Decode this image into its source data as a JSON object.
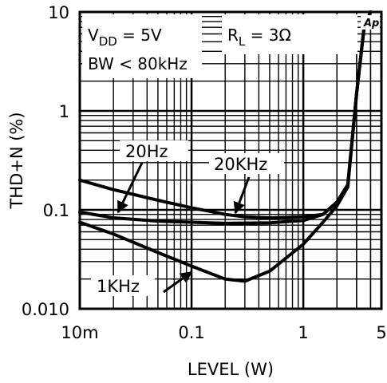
{
  "chart_data": {
    "type": "line",
    "title": "",
    "xlabel": "LEVEL (W)",
    "ylabel": "THD+N (%)",
    "xscale": "log",
    "yscale": "log",
    "xlim": [
      0.01,
      5
    ],
    "ylim": [
      0.01,
      10
    ],
    "grid": true,
    "x_ticks": [
      {
        "value": 0.01,
        "label": "10m"
      },
      {
        "value": 0.1,
        "label": "0.1"
      },
      {
        "value": 1,
        "label": "1"
      },
      {
        "value": 5,
        "label": "5"
      }
    ],
    "y_ticks": [
      {
        "value": 10,
        "label": "10"
      },
      {
        "value": 1,
        "label": "1"
      },
      {
        "value": 0.1,
        "label": "0.1"
      },
      {
        "value": 0.01,
        "label": "0.010"
      }
    ],
    "conditions": {
      "vdd": "V",
      "vdd_sub": "DD",
      "vdd_value": " = 5V",
      "rl": "R",
      "rl_sub": "L",
      "rl_value": " = 3Ω",
      "bw": "BW < 80kHz"
    },
    "logo": "Ap",
    "series": [
      {
        "name": "20Hz",
        "x": [
          0.01,
          0.02,
          0.05,
          0.1,
          0.2,
          0.5,
          1,
          1.5,
          2,
          2.5,
          3,
          3.5,
          4
        ],
        "y": [
          0.095,
          0.083,
          0.077,
          0.075,
          0.073,
          0.074,
          0.078,
          0.09,
          0.12,
          0.17,
          1.5,
          7,
          10
        ]
      },
      {
        "name": "20KHz",
        "x": [
          0.01,
          0.02,
          0.05,
          0.1,
          0.2,
          0.3,
          0.5,
          1,
          1.5,
          2,
          2.5,
          3,
          3.5,
          4
        ],
        "y": [
          0.2,
          0.16,
          0.125,
          0.105,
          0.09,
          0.085,
          0.083,
          0.085,
          0.09,
          0.12,
          0.18,
          1.5,
          7,
          10
        ]
      },
      {
        "name": "1KHz",
        "x": [
          0.01,
          0.02,
          0.05,
          0.1,
          0.2,
          0.3,
          0.5,
          1,
          1.5,
          2,
          2.5,
          3,
          3.5,
          4
        ],
        "y": [
          0.075,
          0.057,
          0.037,
          0.027,
          0.02,
          0.019,
          0.024,
          0.045,
          0.075,
          0.11,
          0.17,
          1.5,
          7,
          10
        ]
      }
    ],
    "annotations": [
      {
        "text": "20Hz",
        "target_series": "20Hz"
      },
      {
        "text": "20KHz",
        "target_series": "20KHz"
      },
      {
        "text": "1KHz",
        "target_series": "1KHz"
      }
    ]
  }
}
